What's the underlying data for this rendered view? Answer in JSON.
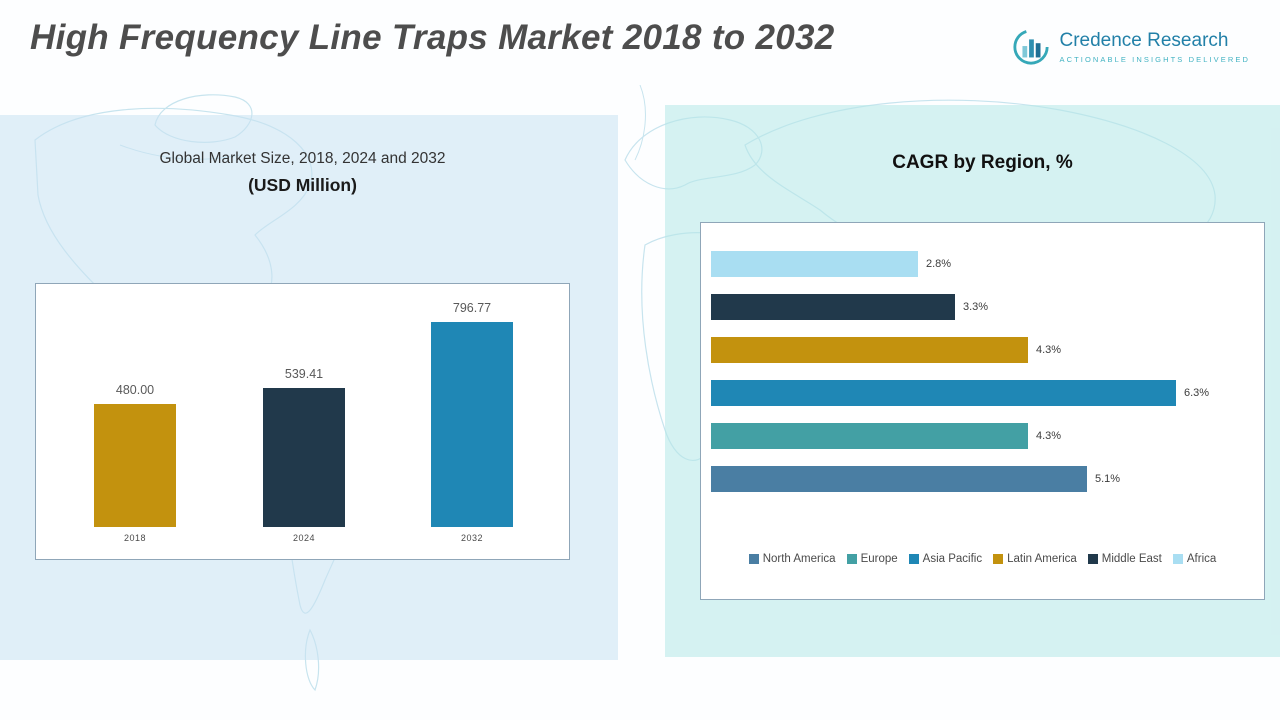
{
  "page": {
    "title": "High Frequency Line Traps Market 2018 to 2032"
  },
  "logo": {
    "name": "Credence Research",
    "tagline": "Actionable Insights Delivered"
  },
  "market_chart": {
    "title": "Global Market Size, 2018, 2024 and 2032",
    "subtitle": "(USD Million)"
  },
  "cagr_chart": {
    "title": "CAGR by Region, %"
  },
  "colors": {
    "gold": "#C3920E",
    "navy": "#21394B",
    "blue": "#1F87B5",
    "teal": "#43A0A4",
    "steel": "#4A7EA3",
    "light_blue": "#A9DEF2"
  },
  "chart_data": [
    {
      "type": "bar",
      "title": "Global Market Size, 2018, 2024 and 2032 (USD Million)",
      "categories": [
        "2018",
        "2024",
        "2032"
      ],
      "values": [
        480.0,
        539.41,
        796.77
      ],
      "value_labels": [
        "480.00",
        "539.41",
        "796.77"
      ],
      "colors": [
        "#C3920E",
        "#21394B",
        "#1F87B5"
      ],
      "ylim": [
        0,
        850
      ],
      "grid": false,
      "legend_position": "none"
    },
    {
      "type": "bar",
      "orientation": "horizontal",
      "title": "CAGR by Region, %",
      "categories": [
        "Africa",
        "Middle East",
        "Latin America",
        "Asia Pacific",
        "Europe",
        "North America"
      ],
      "values": [
        2.8,
        3.3,
        4.3,
        6.3,
        4.3,
        5.1
      ],
      "value_labels": [
        "2.8%",
        "3.3%",
        "4.3%",
        "6.3%",
        "4.3%",
        "5.1%"
      ],
      "colors": [
        "#A9DEF2",
        "#21394B",
        "#C3920E",
        "#1F87B5",
        "#43A0A4",
        "#4A7EA3"
      ],
      "xlim": [
        0,
        7.5
      ],
      "grid": false,
      "legend_position": "bottom",
      "legend": [
        {
          "label": "North America",
          "color": "#4A7EA3"
        },
        {
          "label": "Europe",
          "color": "#43A0A4"
        },
        {
          "label": "Asia Pacific",
          "color": "#1F87B5"
        },
        {
          "label": "Latin America",
          "color": "#C3920E"
        },
        {
          "label": "Middle East",
          "color": "#21394B"
        },
        {
          "label": "Africa",
          "color": "#A9DEF2"
        }
      ]
    }
  ]
}
